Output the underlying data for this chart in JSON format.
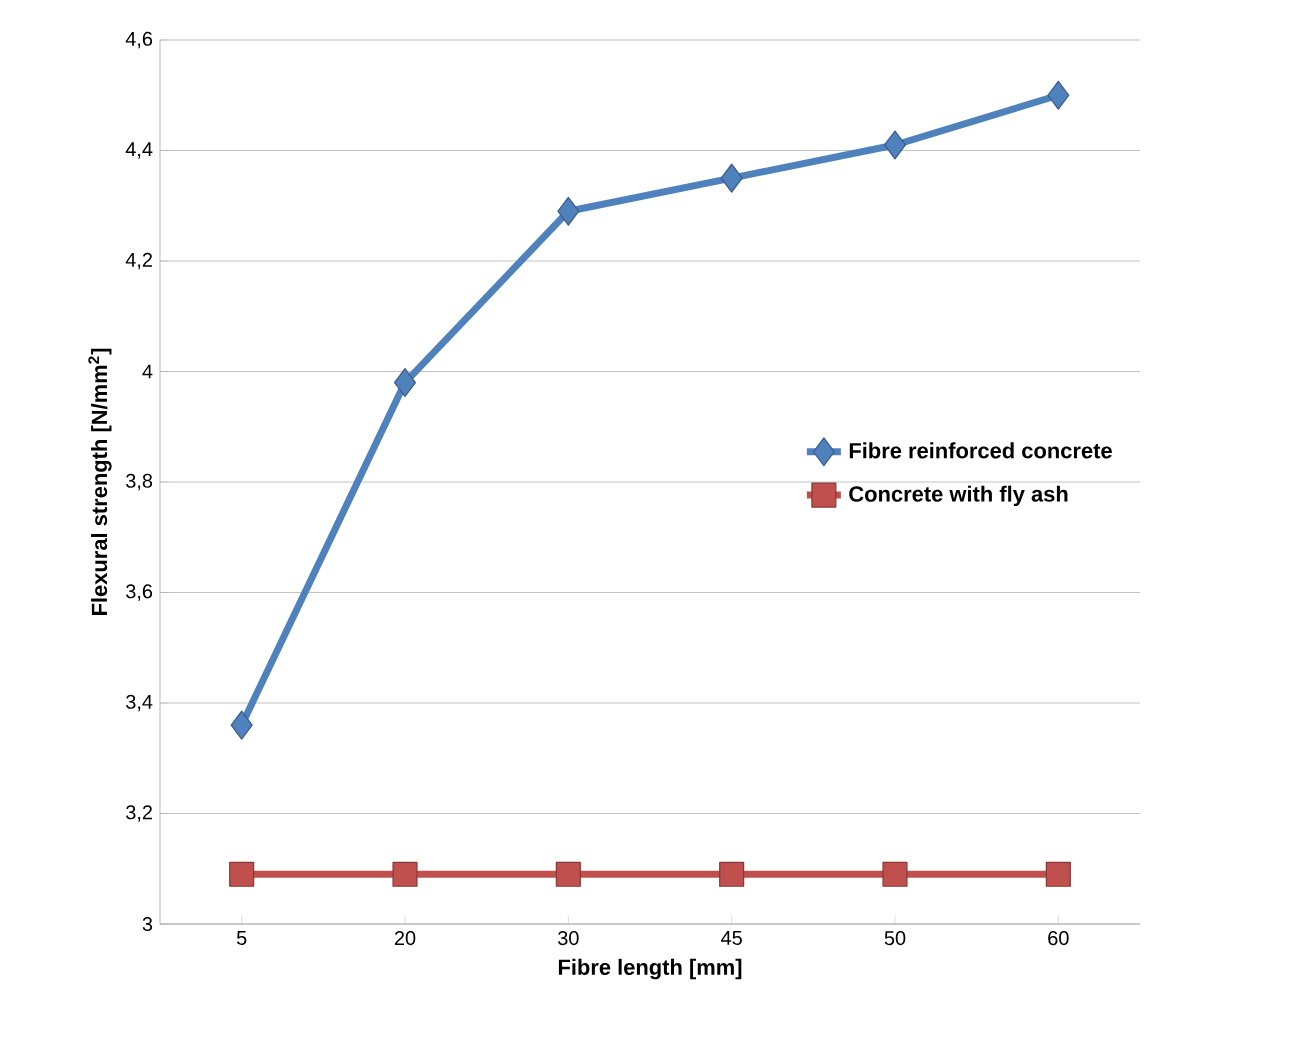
{
  "chart_data": {
    "type": "line",
    "xlabel": "Fibre length [mm]",
    "ylabel": "Flexural strength [N/mm$^{2}$]",
    "categories": [
      "5",
      "20",
      "30",
      "45",
      "50",
      "60"
    ],
    "series": [
      {
        "name": "Fibre reinforced concrete",
        "color": "#4f81bd",
        "marker": "diamond",
        "values": [
          3.36,
          3.98,
          4.29,
          4.35,
          4.41,
          4.5
        ]
      },
      {
        "name": "Concrete with fly ash",
        "color": "#c0504d",
        "marker": "square",
        "values": [
          3.09,
          3.09,
          3.09,
          3.09,
          3.09,
          3.09
        ]
      }
    ],
    "ylim": [
      3,
      4.6
    ],
    "yticks": [
      3,
      {
        "value": 3.2,
        "label": "3,2"
      },
      {
        "value": 3.4,
        "label": "3,4"
      },
      {
        "value": 3.6,
        "label": "3,6"
      },
      {
        "value": 3.8,
        "label": "3,8"
      },
      4,
      {
        "value": 4.2,
        "label": "4,2"
      },
      {
        "value": 4.4,
        "label": "4,4"
      },
      {
        "value": 4.6,
        "label": "4,6"
      }
    ],
    "grid": "y",
    "legend": "right",
    "line_style": "solid"
  }
}
